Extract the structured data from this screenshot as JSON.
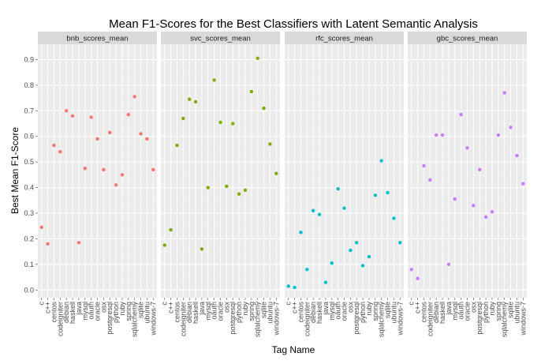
{
  "chart_data": {
    "type": "scatter",
    "title": "Mean F1-Scores for the Best Classifiers with Latent Semantic Analysis",
    "xlabel": "Tag Name",
    "ylabel": "Best Mean F1-Score",
    "ylim": [
      -0.03,
      0.96
    ],
    "yticks": [
      "0.0",
      "0.1",
      "0.2",
      "0.3",
      "0.4",
      "0.5",
      "0.6",
      "0.7",
      "0.8",
      "0.9"
    ],
    "grid": true,
    "legend": "none",
    "categories": [
      "c",
      "c++",
      "centos",
      "codeigniter",
      "debian",
      "haskell",
      "java",
      "mysql",
      "oauth",
      "oracle",
      "osx",
      "postgresql",
      "python",
      "ruby",
      "spring",
      "sqlalchemy",
      "sqlite",
      "ubuntu",
      "windows-7"
    ],
    "panels": [
      {
        "name": "bnb_scores_mean",
        "color": "#f8766d",
        "values": [
          0.245,
          0.18,
          0.565,
          0.54,
          0.7,
          0.68,
          0.185,
          0.475,
          0.675,
          0.59,
          0.47,
          0.615,
          0.41,
          0.45,
          0.685,
          0.755,
          0.61,
          0.59,
          0.47
        ]
      },
      {
        "name": "svc_scores_mean",
        "color": "#7cae00",
        "values": [
          0.175,
          0.235,
          0.565,
          0.67,
          0.745,
          0.735,
          0.16,
          0.4,
          0.82,
          0.655,
          0.405,
          0.65,
          0.375,
          0.39,
          0.775,
          0.905,
          0.71,
          0.57,
          0.455
        ]
      },
      {
        "name": "rfc_scores_mean",
        "color": "#00bfc4",
        "values": [
          0.015,
          0.01,
          0.225,
          0.08,
          0.31,
          0.295,
          0.03,
          0.105,
          0.395,
          0.32,
          0.155,
          0.185,
          0.095,
          0.13,
          0.37,
          0.505,
          0.38,
          0.28,
          0.185
        ]
      },
      {
        "name": "gbc_scores_mean",
        "color": "#c77cff",
        "values": [
          0.08,
          0.045,
          0.485,
          0.43,
          0.605,
          0.605,
          0.1,
          0.355,
          0.685,
          0.555,
          0.33,
          0.47,
          0.285,
          0.305,
          0.605,
          0.77,
          0.635,
          0.525,
          0.415
        ]
      }
    ]
  }
}
